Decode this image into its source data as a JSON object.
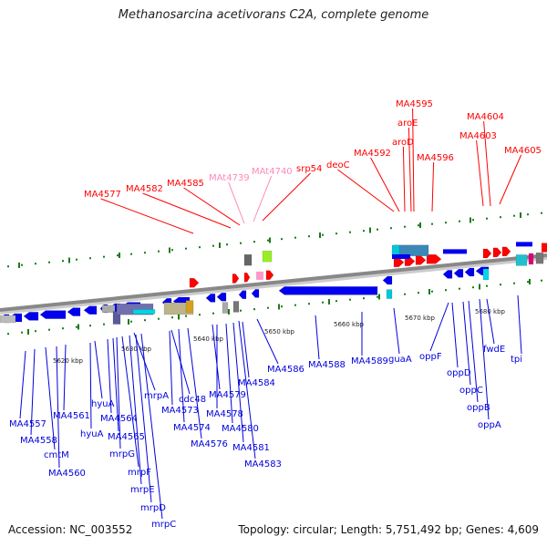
{
  "title": "Methanosarcina acetivorans C2A, complete genome",
  "accession": "Accession: NC_003552",
  "topology": "Topology: circular; Length: 5,751,492 bp; Genes: 4,609",
  "colors": {
    "upper_label": "#ff0000",
    "trna_label": "#ff88bb",
    "lower_label": "#0000dd",
    "backbone": "#888888",
    "forward_gene": "#ff0000",
    "reverse_gene": "#0000ee",
    "tick": "#1a7a1a"
  },
  "scale_labels": [
    "5620 kbp",
    "5630 kbp",
    "5640 kbp",
    "5650 kbp",
    "5660 kbp",
    "5670 kbp",
    "5680 kbp"
  ],
  "upper_labels": [
    {
      "text": "MA4577",
      "kind": "gene"
    },
    {
      "text": "MA4582",
      "kind": "gene"
    },
    {
      "text": "MA4585",
      "kind": "gene"
    },
    {
      "text": "MAt4739",
      "kind": "trna"
    },
    {
      "text": "MAt4740",
      "kind": "trna"
    },
    {
      "text": "srp54",
      "kind": "gene"
    },
    {
      "text": "deoC",
      "kind": "gene"
    },
    {
      "text": "MA4592",
      "kind": "gene"
    },
    {
      "text": "aroD",
      "kind": "gene"
    },
    {
      "text": "aroE",
      "kind": "gene"
    },
    {
      "text": "MA4595",
      "kind": "gene"
    },
    {
      "text": "MA4596",
      "kind": "gene"
    },
    {
      "text": "MA4603",
      "kind": "gene"
    },
    {
      "text": "MA4604",
      "kind": "gene"
    },
    {
      "text": "MA4605",
      "kind": "gene"
    }
  ],
  "lower_labels": [
    "MA4557",
    "MA4558",
    "cmtM",
    "MA4560",
    "MA4561",
    "hyuA",
    "hyuA",
    "MA4564",
    "MA4565",
    "mrpG",
    "mrpF",
    "mrpE",
    "mrpD",
    "mrpC",
    "mrpA",
    "cdc48",
    "MA4573",
    "MA4574",
    "MA4576",
    "MA4579",
    "MA4578",
    "MA4580",
    "MA4581",
    "MA4584",
    "MA4583",
    "MA4586",
    "MA4588",
    "MA4589",
    "guaA",
    "oppF",
    "oppD",
    "oppC",
    "oppB",
    "oppA",
    "fwdE",
    "tpi"
  ]
}
